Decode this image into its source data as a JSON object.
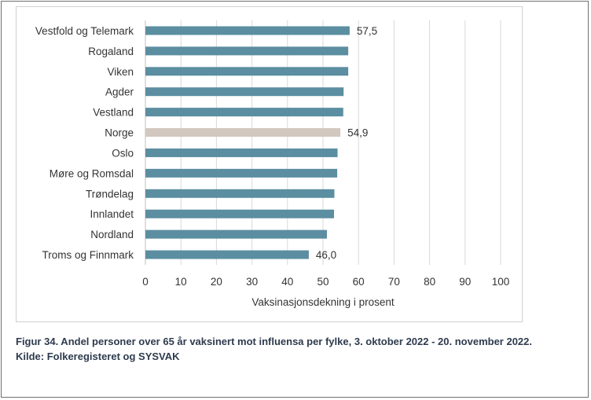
{
  "chart_data": {
    "type": "bar",
    "orientation": "horizontal",
    "categories": [
      "Vestfold og Telemark",
      "Rogaland",
      "Viken",
      "Agder",
      "Vestland",
      "Norge",
      "Oslo",
      "Møre og Romsdal",
      "Trøndelag",
      "Innlandet",
      "Nordland",
      "Troms og Finnmark"
    ],
    "values": [
      57.5,
      57.1,
      57.1,
      55.8,
      55.7,
      54.9,
      54.1,
      54.0,
      53.2,
      53.1,
      51.1,
      46.0
    ],
    "data_labels": {
      "Vestfold og Telemark": "57,5",
      "Norge": "54,9",
      "Troms og Finnmark": "46,0"
    },
    "xlabel": "Vaksinasjonsdekning i prosent",
    "xlim": [
      0,
      100
    ],
    "xticks": [
      0,
      10,
      20,
      30,
      40,
      50,
      60,
      70,
      80,
      90,
      100
    ],
    "grid": "vertical",
    "colors": {
      "bar": "#5b8ea0",
      "highlight": "#d2c8bf",
      "highlight_category": "Norge",
      "grid": "#d9d9d9"
    }
  },
  "caption": {
    "line1": "Figur 34. Andel personer over 65 år vaksinert mot influensa per fylke, 3. oktober 2022 - 20. november 2022.",
    "line2": "Kilde: Folkeregisteret og SYSVAK"
  }
}
